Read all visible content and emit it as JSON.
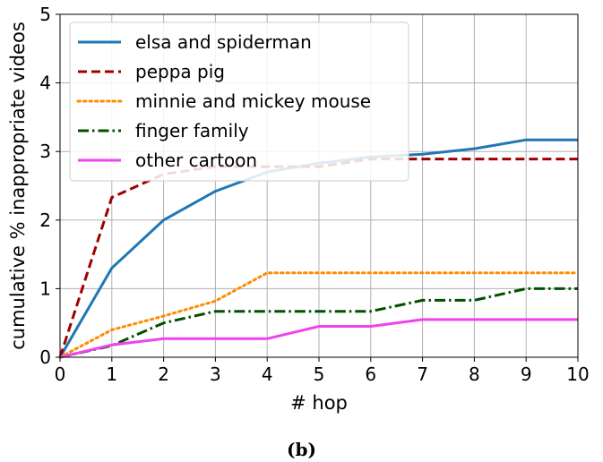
{
  "caption": "(b)",
  "chart_data": {
    "type": "line",
    "xlabel": "# hop",
    "ylabel": "cumulative % inappropriate videos",
    "xlim": [
      0,
      10
    ],
    "ylim": [
      0,
      5
    ],
    "xticks": [
      0,
      1,
      2,
      3,
      4,
      5,
      6,
      7,
      8,
      9,
      10
    ],
    "yticks": [
      0,
      1,
      2,
      3,
      4,
      5
    ],
    "grid": true,
    "legend_position": "top-left",
    "x": [
      0,
      1,
      2,
      3,
      4,
      5,
      6,
      7,
      8,
      9,
      10
    ],
    "series": [
      {
        "name": "elsa and spiderman",
        "color": "#1f77b4",
        "style": "solid",
        "values": [
          0,
          1.3,
          2.0,
          2.42,
          2.7,
          2.83,
          2.92,
          2.96,
          3.04,
          3.17,
          3.17
        ]
      },
      {
        "name": "peppa pig",
        "color": "#a00000",
        "style": "dashed",
        "values": [
          0,
          2.33,
          2.67,
          2.78,
          2.78,
          2.78,
          2.89,
          2.89,
          2.89,
          2.89,
          2.89
        ]
      },
      {
        "name": "minnie and mickey mouse",
        "color": "#ff8c00",
        "style": "dotted",
        "values": [
          0,
          0.4,
          0.6,
          0.82,
          1.23,
          1.23,
          1.23,
          1.23,
          1.23,
          1.23,
          1.23
        ]
      },
      {
        "name": "finger family",
        "color": "#005000",
        "style": "dashdot",
        "values": [
          0,
          0.17,
          0.5,
          0.67,
          0.67,
          0.67,
          0.67,
          0.83,
          0.83,
          1.0,
          1.0
        ]
      },
      {
        "name": "other cartoon",
        "color": "#ee44ee",
        "style": "solid",
        "values": [
          0,
          0.18,
          0.27,
          0.27,
          0.27,
          0.45,
          0.45,
          0.55,
          0.55,
          0.55,
          0.55
        ]
      }
    ]
  }
}
